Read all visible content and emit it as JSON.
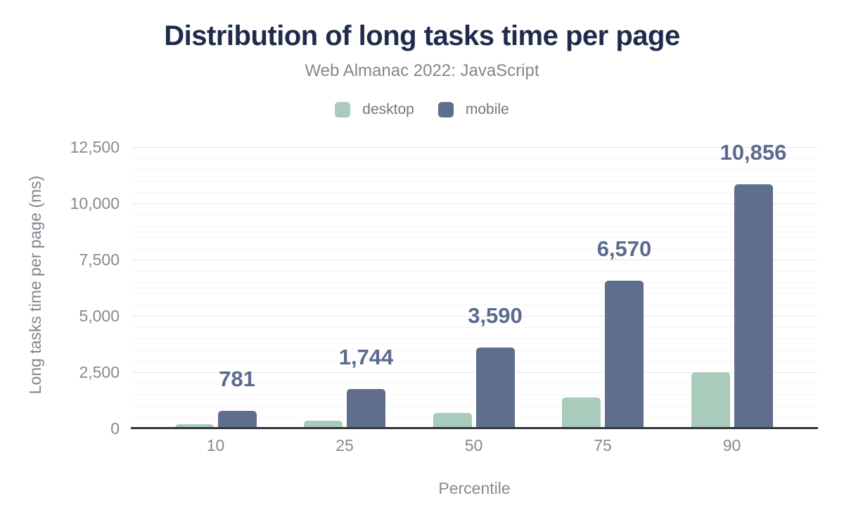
{
  "header": {
    "title": "Distribution of long tasks time per page",
    "subtitle": "Web Almanac 2022: JavaScript"
  },
  "legend": {
    "items": [
      {
        "label": "desktop",
        "color": "#a9cbbb"
      },
      {
        "label": "mobile",
        "color": "#5f6e8c"
      }
    ]
  },
  "chart_data": {
    "type": "bar",
    "title": "Distribution of long tasks time per page",
    "subtitle": "Web Almanac 2022: JavaScript",
    "xlabel": "Percentile",
    "ylabel": "Long tasks time per page (ms)",
    "categories": [
      "10",
      "25",
      "50",
      "75",
      "90"
    ],
    "ylim": [
      0,
      12500
    ],
    "ytick_interval": 2500,
    "yminor_interval": 500,
    "ytick_labels": [
      "0",
      "2,500",
      "5,000",
      "7,500",
      "10,000",
      "12,500"
    ],
    "grid": true,
    "legend_position": "top",
    "series": [
      {
        "name": "desktop",
        "color": "#a9cbbb",
        "values": [
          190,
          340,
          680,
          1370,
          2490
        ],
        "values_estimated_from_pixels": true,
        "data_labels": [
          "",
          "",
          "",
          "",
          ""
        ]
      },
      {
        "name": "mobile",
        "color": "#5f6e8c",
        "values": [
          781,
          1744,
          3590,
          6570,
          10856
        ],
        "data_labels": [
          "781",
          "1,744",
          "3,590",
          "6,570",
          "10,856"
        ]
      }
    ]
  },
  "colors": {
    "title": "#1f2b4d",
    "subtitle": "#82878d",
    "legend_text": "#72787f",
    "tick_text": "#858a91",
    "axis_title_text": "#7f858d",
    "data_label": "#5a6b8d",
    "axis_line": "#36373b",
    "grid_major": "#e4e6e9",
    "grid_minor": "#f3f4f5",
    "background": "#ffffff"
  }
}
